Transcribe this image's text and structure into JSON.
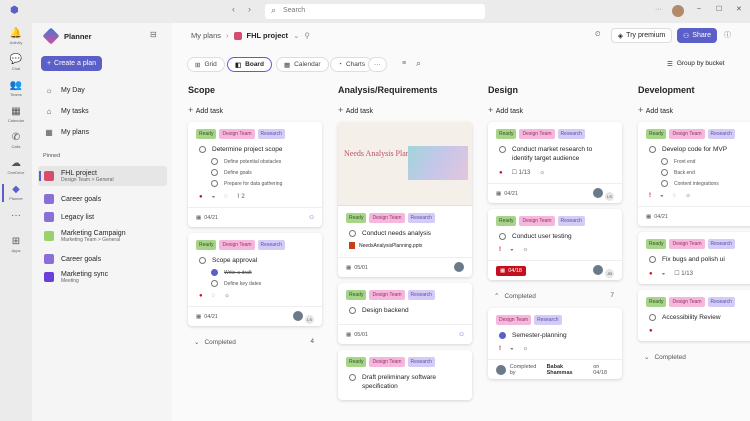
{
  "titlebar": {
    "search_placeholder": "Search",
    "more": "···"
  },
  "rail": [
    {
      "label": "Activity",
      "icon": "bell-icon",
      "g": "🔔"
    },
    {
      "label": "Chat",
      "icon": "chat-icon",
      "g": "💬"
    },
    {
      "label": "Teams",
      "icon": "teams-icon",
      "g": "👥"
    },
    {
      "label": "Calendar",
      "icon": "calendar-icon",
      "g": "▦"
    },
    {
      "label": "Calls",
      "icon": "phone-icon",
      "g": "✆"
    },
    {
      "label": "OneDrive",
      "icon": "cloud-icon",
      "g": "☁"
    },
    {
      "label": "Planner",
      "icon": "planner-icon",
      "g": "◆",
      "active": true
    },
    {
      "label": "",
      "icon": "more-icon",
      "g": "···"
    },
    {
      "label": "Apps",
      "icon": "apps-icon",
      "g": "⊞"
    }
  ],
  "sidebar": {
    "app": "Planner",
    "create": "Create a plan",
    "nav": [
      {
        "label": "My Day",
        "g": "☼"
      },
      {
        "label": "My tasks",
        "g": "⌂"
      },
      {
        "label": "My plans",
        "g": "▦"
      }
    ],
    "pinned_label": "Pinned",
    "pinned": [
      {
        "title": "FHL project",
        "sub": "Design Team > General",
        "color": "#d64d6b",
        "active": true
      },
      {
        "title": "Career goals",
        "sub": "",
        "color": "#8b6fd8"
      },
      {
        "title": "Legacy list",
        "sub": "",
        "color": "#8b6fd8"
      },
      {
        "title": "Marketing Campaign",
        "sub": "Marketing Team > General",
        "color": "#9bd16b"
      },
      {
        "title": "Career goals",
        "sub": "",
        "color": "#8b6fd8"
      },
      {
        "title": "Marketing sync",
        "sub": "Meeting",
        "color": "#6b3fd8"
      }
    ]
  },
  "header": {
    "breadcrumb_root": "My plans",
    "plan": "FHL project",
    "try_premium": "Try premium",
    "share": "Share"
  },
  "views": {
    "tabs": [
      "Grid",
      "Board",
      "Calendar",
      "Charts"
    ],
    "active": "Board",
    "more": "···",
    "group_by": "Group by bucket"
  },
  "colors": {
    "accent": "#5b5fc7",
    "ready_bg": "#a8d38a",
    "design_bg": "#f5b8dc",
    "research_bg": "#d4ccf7",
    "late": "#c50f1f"
  },
  "board": {
    "add_task": "Add task",
    "columns": [
      {
        "title": "Scope",
        "cards": [
          {
            "tags": [
              "Ready",
              "Design Team",
              "Research"
            ],
            "title": "Determine project scope",
            "subtasks": [
              [
                "Define potential obstacles",
                false
              ],
              [
                "Define goals",
                false
              ],
              [
                "Prepare for data gathering",
                false
              ]
            ],
            "icons": [
              "●",
              "◒",
              "◌",
              "⌇ 2"
            ],
            "date": "04/21",
            "assign": "add"
          },
          {
            "tags": [
              "Ready",
              "Design Team",
              "Research"
            ],
            "title": "Scope approval",
            "subtasks": [
              [
                "Write-a-draft",
                true
              ],
              [
                "Define key dates",
                false
              ]
            ],
            "icons": [
              "●",
              "◌",
              "☼"
            ],
            "date": "04/21",
            "assign": "LS"
          }
        ],
        "completed": {
          "label": "Completed",
          "count": "4",
          "open": false
        }
      },
      {
        "title": "Analysis/Requirements",
        "cards": [
          {
            "thumb": {
              "title": "Needs Analysis Planning"
            },
            "tags": [
              "Ready",
              "Design Team",
              "Research"
            ],
            "title": "Conduct needs analysis",
            "attachment": "NeedsAnalysisPlanning.pptx",
            "date": "05/01",
            "assign": "avatar"
          },
          {
            "tags": [
              "Ready",
              "Design Team",
              "Research"
            ],
            "title": "Design backend",
            "date": "05/01",
            "assign": "add"
          },
          {
            "tags": [
              "Ready",
              "Design Team",
              "Research"
            ],
            "title": "Draft preliminary software specification"
          }
        ]
      },
      {
        "title": "Design",
        "cards": [
          {
            "tags": [
              "Ready",
              "Design Team",
              "Research"
            ],
            "title": "Conduct market research to identify target audience",
            "icons": [
              "●",
              "☐ 1/13",
              "☼"
            ],
            "date": "04/21",
            "assign": "LS"
          },
          {
            "tags": [
              "Ready",
              "Design Team",
              "Research"
            ],
            "title": "Conduct user testing",
            "icons": [
              "!",
              "◒",
              "☼"
            ],
            "date": "04/18",
            "late": true,
            "assign": "JB"
          }
        ],
        "completed": {
          "label": "Completed",
          "count": "7",
          "open": true
        },
        "completed_cards": [
          {
            "tags": [
              "Design Team",
              "Research"
            ],
            "title": "Semester-planning",
            "done": true,
            "icons": [
              "!",
              "◒",
              "☼"
            ],
            "completed_by": "Completed by",
            "completed_name": "Babak Shammas",
            "completed_on": "on 04/18"
          }
        ]
      },
      {
        "title": "Development",
        "cards": [
          {
            "tags": [
              "Ready",
              "Design Team",
              "Research"
            ],
            "title": "Develop code for MVP",
            "subtasks": [
              [
                "Front end",
                false
              ],
              [
                "Back end",
                false
              ],
              [
                "Content integrations",
                false
              ]
            ],
            "icons": [
              "!",
              "◒",
              "◌",
              "☼"
            ],
            "date": "04/21",
            "assign": "avatar"
          },
          {
            "tags": [
              "Ready",
              "Design Team",
              "Research"
            ],
            "title": "Fix bugs and polish ui",
            "icons": [
              "●",
              "◒",
              "☐ 1/13"
            ]
          },
          {
            "tags": [
              "Ready",
              "Design Team",
              "Research"
            ],
            "title": "Accessibility Review",
            "icons": [
              "●"
            ]
          }
        ],
        "completed": {
          "label": "Completed",
          "count": "",
          "open": false
        }
      }
    ]
  }
}
